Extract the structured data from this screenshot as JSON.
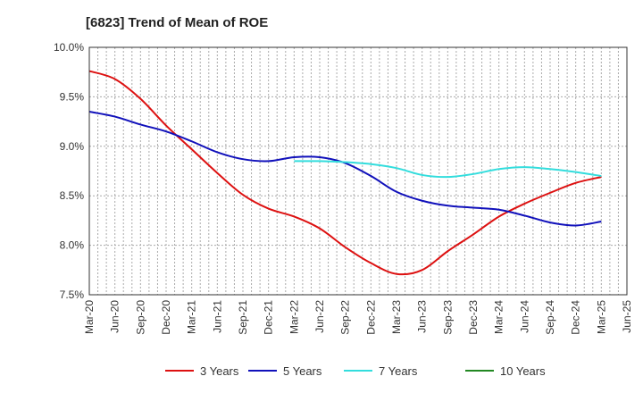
{
  "chart_data": {
    "type": "line",
    "title": "[6823]  Trend of Mean of ROE",
    "xlabel": "",
    "ylabel": "",
    "x_ticks": [
      "Mar-20",
      "Jun-20",
      "Sep-20",
      "Dec-20",
      "Mar-21",
      "Jun-21",
      "Sep-21",
      "Dec-21",
      "Mar-22",
      "Jun-22",
      "Sep-22",
      "Dec-22",
      "Mar-23",
      "Jun-23",
      "Sep-23",
      "Dec-23",
      "Mar-24",
      "Jun-24",
      "Sep-24",
      "Dec-24",
      "Mar-25",
      "Jun-25"
    ],
    "y_ticks": [
      "7.5%",
      "8.0%",
      "8.5%",
      "9.0%",
      "9.5%",
      "10.0%"
    ],
    "ylim": [
      7.5,
      10.0
    ],
    "grid": true,
    "legend_position": "bottom",
    "series": [
      {
        "name": "3 Years",
        "color": "#dd1111",
        "x": [
          "Mar-20",
          "Jun-20",
          "Sep-20",
          "Dec-20",
          "Mar-21",
          "Jun-21",
          "Sep-21",
          "Dec-21",
          "Mar-22",
          "Jun-22",
          "Sep-22",
          "Dec-22",
          "Mar-23",
          "Jun-23",
          "Sep-23",
          "Dec-23",
          "Mar-24",
          "Jun-24",
          "Sep-24",
          "Dec-24",
          "Mar-25"
        ],
        "values": [
          9.76,
          9.68,
          9.48,
          9.21,
          8.97,
          8.73,
          8.51,
          8.37,
          8.29,
          8.17,
          7.98,
          7.82,
          7.71,
          7.75,
          7.94,
          8.11,
          8.29,
          8.42,
          8.53,
          8.63,
          8.69
        ]
      },
      {
        "name": "5 Years",
        "color": "#1111bb",
        "x": [
          "Mar-20",
          "Jun-20",
          "Sep-20",
          "Dec-20",
          "Mar-21",
          "Jun-21",
          "Sep-21",
          "Dec-21",
          "Mar-22",
          "Jun-22",
          "Sep-22",
          "Dec-22",
          "Mar-23",
          "Jun-23",
          "Sep-23",
          "Dec-23",
          "Mar-24",
          "Jun-24",
          "Sep-24",
          "Dec-24",
          "Mar-25"
        ],
        "values": [
          9.35,
          9.3,
          9.22,
          9.15,
          9.05,
          8.94,
          8.87,
          8.85,
          8.89,
          8.89,
          8.83,
          8.7,
          8.54,
          8.45,
          8.4,
          8.38,
          8.36,
          8.3,
          8.23,
          8.2,
          8.24
        ]
      },
      {
        "name": "7 Years",
        "color": "#33dddd",
        "x": [
          "Mar-22",
          "Jun-22",
          "Sep-22",
          "Dec-22",
          "Mar-23",
          "Jun-23",
          "Sep-23",
          "Dec-23",
          "Mar-24",
          "Jun-24",
          "Sep-24",
          "Dec-24",
          "Mar-25"
        ],
        "values": [
          8.85,
          8.85,
          8.84,
          8.82,
          8.78,
          8.71,
          8.69,
          8.72,
          8.77,
          8.79,
          8.77,
          8.74,
          8.7
        ]
      },
      {
        "name": "10 Years",
        "color": "#228822",
        "x": [],
        "values": []
      }
    ]
  }
}
